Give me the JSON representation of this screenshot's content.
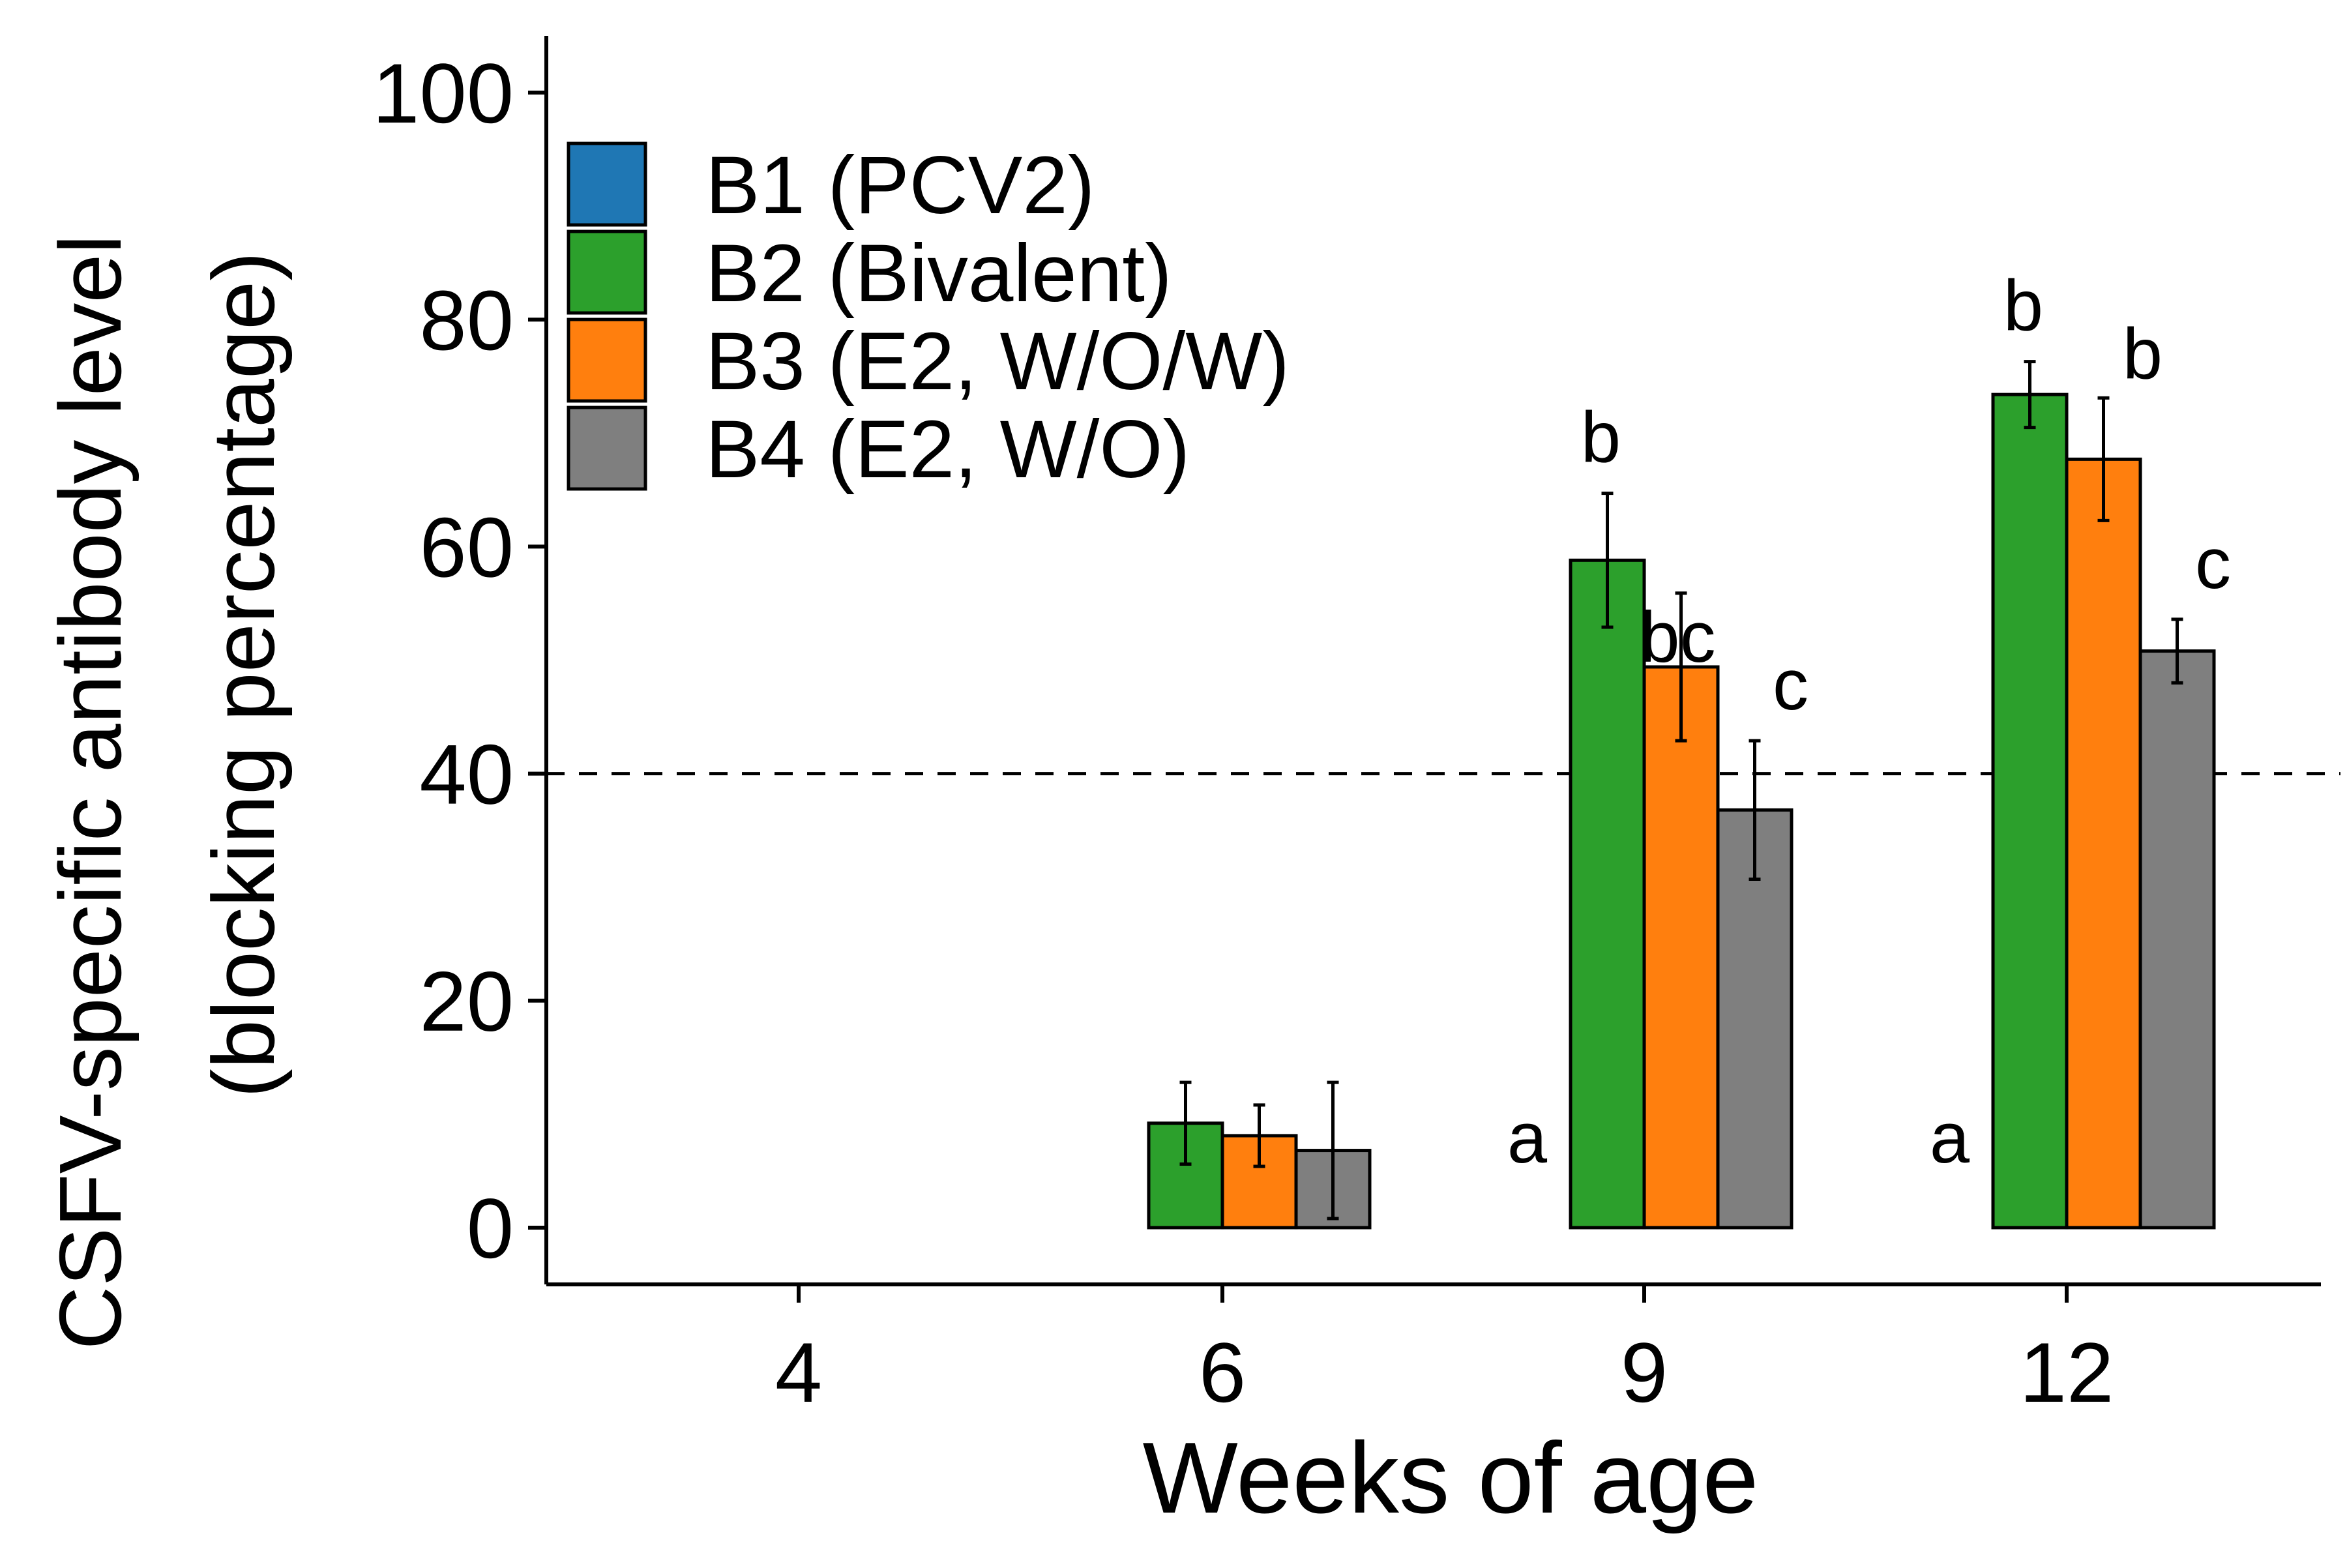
{
  "chart_data": {
    "type": "bar",
    "xlabel": "Weeks of age",
    "ylabel_line1": "CSFV-specific antibody level",
    "ylabel_line2": "(blocking percentage)",
    "ylim": [
      -5,
      105
    ],
    "yticks": [
      0,
      20,
      40,
      60,
      80,
      100
    ],
    "categories": [
      "4",
      "6",
      "9",
      "12"
    ],
    "reference_line": {
      "y": 40,
      "style": "dashed"
    },
    "legend_position": "top-left",
    "series": [
      {
        "name": "B1 (PCV2)",
        "color": "#1f77b4",
        "values": [
          null,
          null,
          null,
          null
        ],
        "errors": [
          null,
          null,
          null,
          null
        ],
        "letters": [
          "",
          "",
          "a",
          "a"
        ]
      },
      {
        "name": "B2 (Bivalent)",
        "color": "#2ca02c",
        "values": [
          null,
          9.2,
          58.8,
          73.4
        ],
        "errors": [
          null,
          3.6,
          5.9,
          2.9
        ],
        "letters": [
          "",
          "",
          "b",
          "b"
        ]
      },
      {
        "name": "B3 (E2, W/O/W)",
        "color": "#ff7f0e",
        "values": [
          null,
          8.1,
          49.4,
          67.7
        ],
        "errors": [
          null,
          2.7,
          6.5,
          5.4
        ],
        "letters": [
          "",
          "",
          "bc",
          "b"
        ]
      },
      {
        "name": "B4 (E2, W/O)",
        "color": "#7f7f7f",
        "values": [
          null,
          6.8,
          36.8,
          50.8
        ],
        "errors": [
          null,
          6.0,
          6.1,
          2.8
        ],
        "letters": [
          "",
          "",
          "c",
          "c"
        ]
      }
    ]
  }
}
